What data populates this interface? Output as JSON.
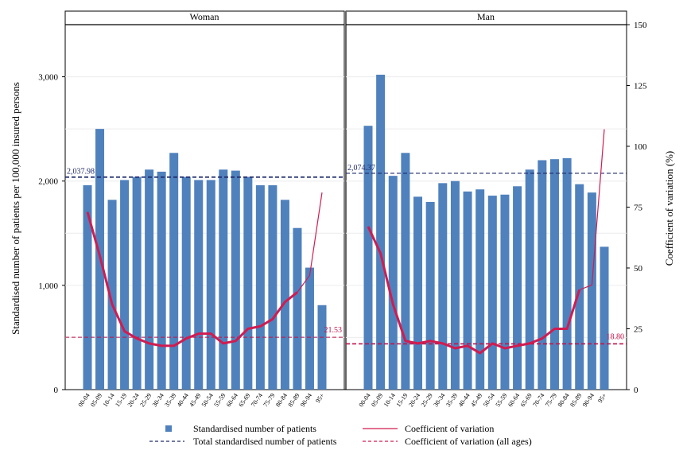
{
  "chart_data": {
    "type": "bar",
    "categories": [
      "00-04",
      "05-09",
      "10-14",
      "15-19",
      "20-24",
      "25-29",
      "30-34",
      "35-39",
      "40-44",
      "45-49",
      "50-54",
      "55-59",
      "60-64",
      "65-69",
      "70-74",
      "75-79",
      "80-84",
      "85-89",
      "90-94",
      "95+"
    ],
    "y_left_label": "Standardised number of patients per 100,000 insured persons",
    "y_right_label": "Coefficient of variation (%)",
    "y_left_ticks": [
      "0",
      "1,000",
      "2,000",
      "3,000"
    ],
    "y_left_range": [
      0,
      3500
    ],
    "y_right_ticks": [
      "0",
      "25",
      "50",
      "75",
      "100",
      "125",
      "150"
    ],
    "y_right_range": [
      0,
      150
    ],
    "panels": [
      {
        "title": "Woman",
        "values": [
          1960,
          2500,
          1820,
          2010,
          2040,
          2110,
          2090,
          2270,
          2040,
          2010,
          2010,
          2110,
          2100,
          2040,
          1960,
          1960,
          1820,
          1550,
          1170,
          810
        ],
        "cv": [
          73,
          55,
          35,
          24,
          21,
          19,
          18,
          18,
          21,
          23,
          23,
          19,
          20,
          25,
          26,
          29,
          36,
          40,
          47,
          81
        ],
        "total": 2037.98,
        "total_label": "2,037.98",
        "cv_all": 21.53,
        "cv_all_label": "21.53"
      },
      {
        "title": "Man",
        "values": [
          2530,
          3020,
          2050,
          2270,
          1850,
          1800,
          1980,
          2000,
          1900,
          1920,
          1860,
          1870,
          1950,
          2110,
          2200,
          2210,
          2220,
          1970,
          1890,
          1370
        ],
        "cv": [
          67,
          56,
          35,
          20,
          19,
          20,
          19,
          17,
          18,
          15,
          19,
          17,
          18,
          19,
          21,
          25,
          25,
          41,
          43,
          107
        ],
        "total": 2074.37,
        "total_label": "2,074.37",
        "cv_all": 18.8,
        "cv_all_label": "18.80"
      }
    ],
    "legend": [
      {
        "label": "Standardised number of patients",
        "kind": "square",
        "color": "#4f81bd"
      },
      {
        "label": "Coefficient of variation",
        "kind": "line",
        "color": "#d01c50"
      },
      {
        "label": "Total standardised number of patients",
        "kind": "dash",
        "color": "#1f2a6b"
      },
      {
        "label": "Coefficient of variation (all ages)",
        "kind": "dash",
        "color": "#d01c50"
      }
    ],
    "colors": {
      "bar": "#4f81bd",
      "cv": "#d01c50",
      "total": "#1f2a6b",
      "cv_all": "#c0154a"
    },
    "grid": true,
    "legend_position": "bottom"
  }
}
